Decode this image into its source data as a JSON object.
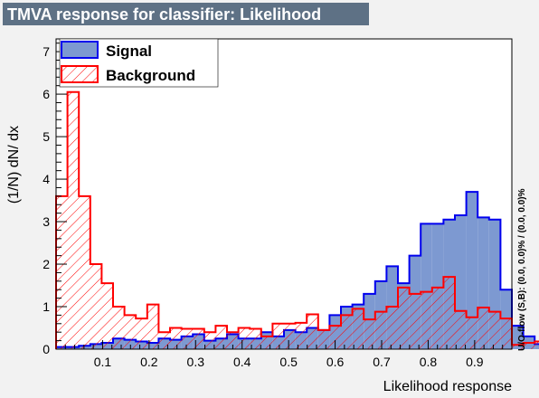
{
  "title": "TMVA response for classifier: Likelihood",
  "overflow_note": "U/O-flow (S,B): (0.0, 0.0)% / (0.0, 0.0)%",
  "colors": {
    "title_bg": "#5e7185",
    "title_text": "#ffffff",
    "signal_fill": "#7d99d1",
    "signal_line": "#0000ee",
    "background_line": "#ff0000",
    "frame": "#000000",
    "page_bg": "#f2f2f2",
    "plot_bg": "#ffffff"
  },
  "chart_data": {
    "type": "histogram",
    "xlabel": "Likelihood response",
    "ylabel": "(1/N) dN/ dx",
    "xlim": [
      0.0,
      0.98
    ],
    "ylim": [
      0,
      7.3
    ],
    "x_ticks": [
      0.1,
      0.2,
      0.3,
      0.4,
      0.5,
      0.6,
      0.7,
      0.8,
      0.9
    ],
    "x_tick_labels": [
      "0.1",
      "0.2",
      "0.3",
      "0.4",
      "0.5",
      "0.6",
      "0.7",
      "0.8",
      "0.9"
    ],
    "y_ticks": [
      0,
      1,
      2,
      3,
      4,
      5,
      6,
      7
    ],
    "y_tick_labels": [
      "0",
      "1",
      "2",
      "3",
      "4",
      "5",
      "6",
      "7"
    ],
    "bin_edges_start": 0.0,
    "bin_width": 0.0245,
    "legend": {
      "position": "top-left",
      "entries": [
        {
          "label": "Signal",
          "style": "filled"
        },
        {
          "label": "Background",
          "style": "hatched"
        }
      ]
    },
    "series": [
      {
        "name": "Signal",
        "values": [
          0.05,
          0.05,
          0.08,
          0.12,
          0.15,
          0.25,
          0.22,
          0.18,
          0.15,
          0.25,
          0.22,
          0.3,
          0.35,
          0.2,
          0.25,
          0.35,
          0.25,
          0.25,
          0.4,
          0.3,
          0.45,
          0.4,
          0.5,
          0.45,
          0.8,
          1.0,
          1.05,
          1.3,
          1.6,
          1.95,
          1.55,
          2.2,
          2.95,
          2.95,
          3.05,
          3.15,
          3.7,
          3.1,
          3.05,
          1.4,
          0.55,
          0.3,
          0.12,
          0.15
        ]
      },
      {
        "name": "Background",
        "values": [
          3.6,
          6.05,
          3.6,
          2.0,
          1.55,
          1.0,
          0.8,
          0.72,
          1.05,
          0.4,
          0.5,
          0.48,
          0.48,
          0.4,
          0.55,
          0.4,
          0.5,
          0.48,
          0.3,
          0.6,
          0.6,
          0.62,
          0.82,
          0.45,
          0.55,
          0.8,
          0.95,
          0.7,
          0.88,
          1.0,
          1.45,
          1.3,
          1.35,
          1.45,
          1.7,
          0.9,
          0.75,
          0.98,
          0.88,
          0.72,
          0.1,
          0.15,
          0.18,
          0.05
        ]
      }
    ]
  }
}
